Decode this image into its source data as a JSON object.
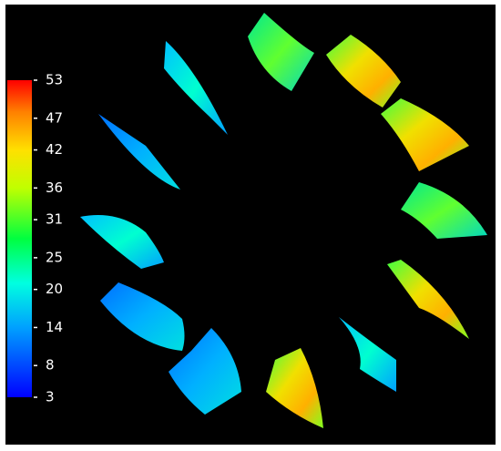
{
  "colorbar": {
    "lim": [
      3,
      53
    ],
    "ticks": [
      3,
      8,
      14,
      20,
      25,
      31,
      36,
      42,
      47,
      53
    ]
  }
}
